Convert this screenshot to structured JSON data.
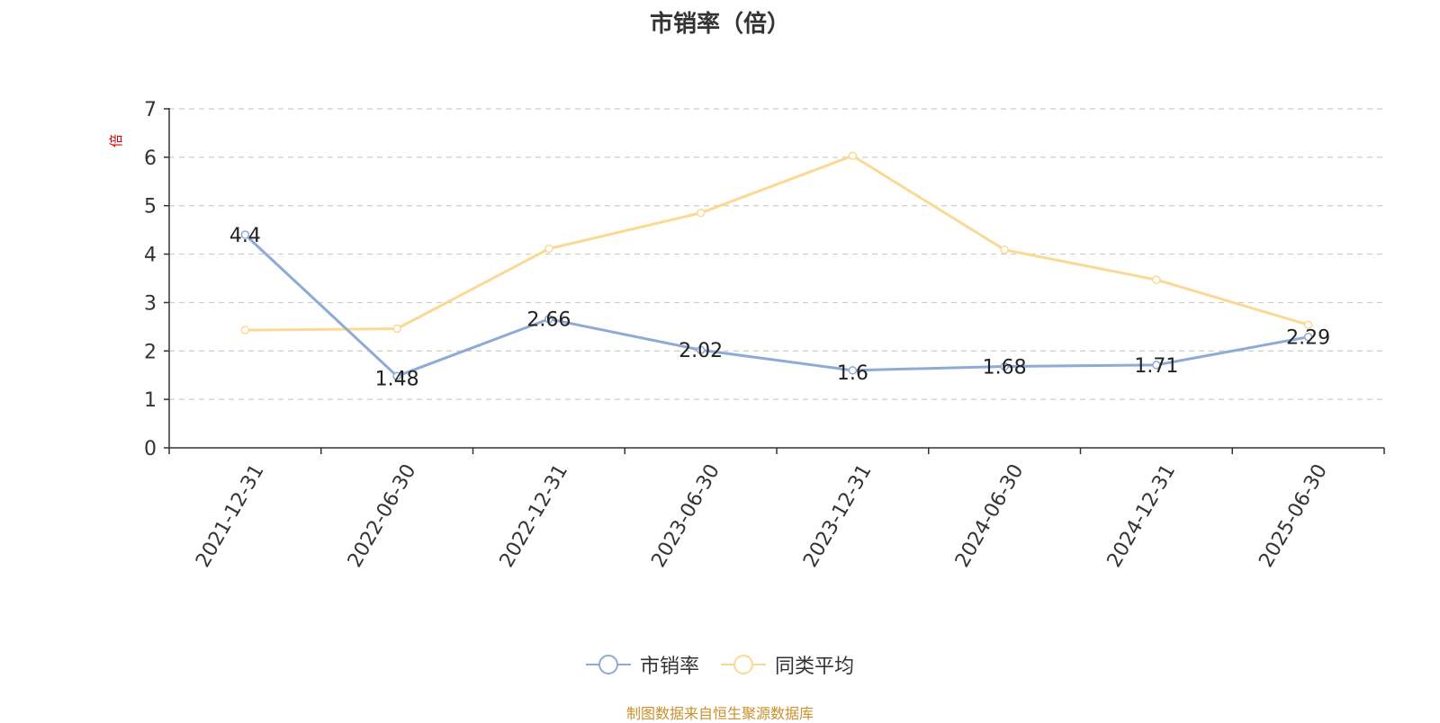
{
  "chart_data": {
    "type": "line",
    "title": "市销率（倍）",
    "ylabel": "倍",
    "xlabel": "",
    "categories": [
      "2021-12-31",
      "2022-06-30",
      "2022-12-31",
      "2023-06-30",
      "2023-12-31",
      "2024-06-30",
      "2024-12-31",
      "2025-06-30"
    ],
    "ylim": [
      0,
      7
    ],
    "yticks": [
      0,
      1,
      2,
      3,
      4,
      5,
      6,
      7
    ],
    "grid": true,
    "legend_position": "bottom",
    "series": [
      {
        "name": "市销率",
        "color": "#8eaad6",
        "values": [
          4.4,
          1.48,
          2.66,
          2.02,
          1.6,
          1.68,
          1.71,
          2.29
        ],
        "labels": [
          "4.4",
          "1.48",
          "2.66",
          "2.02",
          "1.6",
          "1.68",
          "1.71",
          "2.29"
        ]
      },
      {
        "name": "同类平均",
        "color": "#fbd995",
        "values": [
          2.43,
          2.46,
          4.11,
          4.85,
          6.03,
          4.09,
          3.47,
          2.54
        ]
      }
    ]
  },
  "source": "制图数据来自恒生聚源数据库"
}
